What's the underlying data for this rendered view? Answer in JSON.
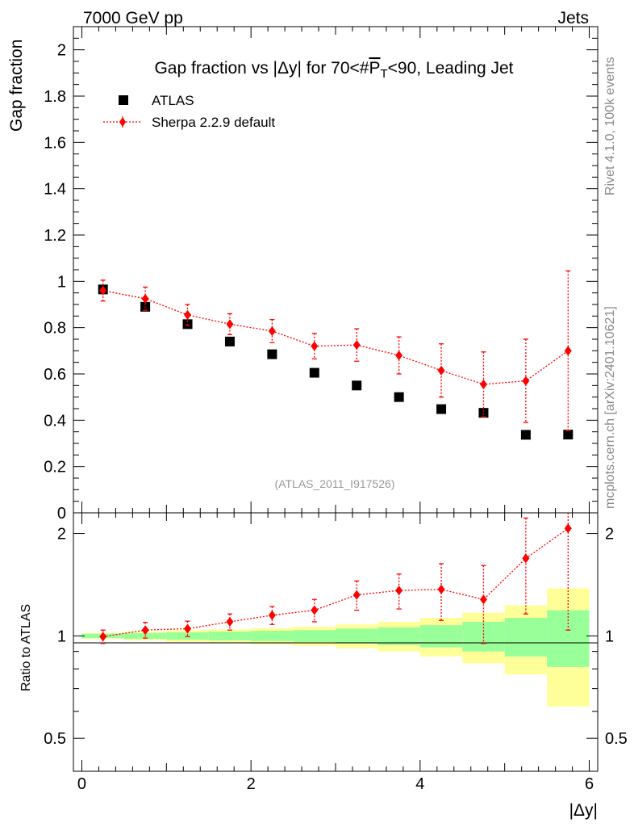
{
  "header": {
    "left_label": "7000 GeV pp",
    "right_label": "Jets"
  },
  "side_labels": {
    "rivet": "Rivet 4.1.0,  100k events",
    "mcplots": "mcplots.cern.ch [arXiv:2401.10621]"
  },
  "chart_data": {
    "type": "scatter",
    "title": "Gap fraction vs |Δy| for 70<#P̅T<90, Leading Jet",
    "title_parts": {
      "prefix": "Gap fraction vs |Δy| for 70<#",
      "p": "P",
      "sub": "T",
      "suffix": "<90, Leading Jet"
    },
    "analysis_label": "(ATLAS_2011_I917526)",
    "xlabel": "|Δy|",
    "ylabel": "Gap fraction",
    "ratio_ylabel": "Ratio to ATLAS",
    "xlim": [
      -0.1,
      6.1
    ],
    "ylim": [
      0,
      2.1
    ],
    "ratio_ylim": [
      0.4,
      2.3
    ],
    "x_ticks": [
      0,
      2,
      4,
      6
    ],
    "y_ticks": [
      0,
      0.2,
      0.4,
      0.6,
      0.8,
      1,
      1.2,
      1.4,
      1.6,
      1.8,
      2
    ],
    "ratio_ticks": [
      0.5,
      1,
      2
    ],
    "bin_edges": [
      0,
      0.5,
      1,
      1.5,
      2,
      2.5,
      3,
      3.5,
      4,
      4.5,
      5,
      5.5,
      6
    ],
    "x": [
      0.25,
      0.75,
      1.25,
      1.75,
      2.25,
      2.75,
      3.25,
      3.75,
      4.25,
      4.75,
      5.25,
      5.75
    ],
    "series": [
      {
        "name": "ATLAS",
        "color": "#000000",
        "marker": "square",
        "values": [
          0.965,
          0.89,
          0.815,
          0.74,
          0.685,
          0.605,
          0.55,
          0.5,
          0.448,
          0.432,
          0.337,
          0.338
        ]
      },
      {
        "name": "Sherpa 2.2.9 default",
        "color": "#ff0000",
        "marker": "diamond",
        "values": [
          0.96,
          0.925,
          0.855,
          0.815,
          0.785,
          0.72,
          0.725,
          0.68,
          0.615,
          0.555,
          0.57,
          0.7
        ],
        "err_up": [
          0.045,
          0.05,
          0.045,
          0.045,
          0.05,
          0.055,
          0.07,
          0.08,
          0.115,
          0.14,
          0.18,
          0.345
        ],
        "err_down": [
          0.045,
          0.05,
          0.045,
          0.045,
          0.05,
          0.055,
          0.07,
          0.08,
          0.115,
          0.14,
          0.18,
          0.345
        ]
      }
    ],
    "ratio": {
      "values": [
        0.995,
        1.04,
        1.05,
        1.1,
        1.15,
        1.19,
        1.32,
        1.36,
        1.37,
        1.28,
        1.69,
        2.07
      ],
      "err_up": [
        0.045,
        0.055,
        0.055,
        0.06,
        0.07,
        0.09,
        0.13,
        0.16,
        0.26,
        0.33,
        0.53,
        1.03
      ],
      "err_down": [
        0.045,
        0.055,
        0.055,
        0.06,
        0.07,
        0.09,
        0.13,
        0.16,
        0.26,
        0.33,
        0.53,
        1.03
      ],
      "band_inner": [
        0.015,
        0.02,
        0.025,
        0.03,
        0.035,
        0.04,
        0.05,
        0.06,
        0.075,
        0.1,
        0.13,
        0.19
      ],
      "band_outer": [
        0.02,
        0.03,
        0.04,
        0.045,
        0.055,
        0.065,
        0.08,
        0.1,
        0.13,
        0.17,
        0.23,
        0.38
      ],
      "inner_color": "#99ff99",
      "outer_color": "#ffff99"
    }
  }
}
